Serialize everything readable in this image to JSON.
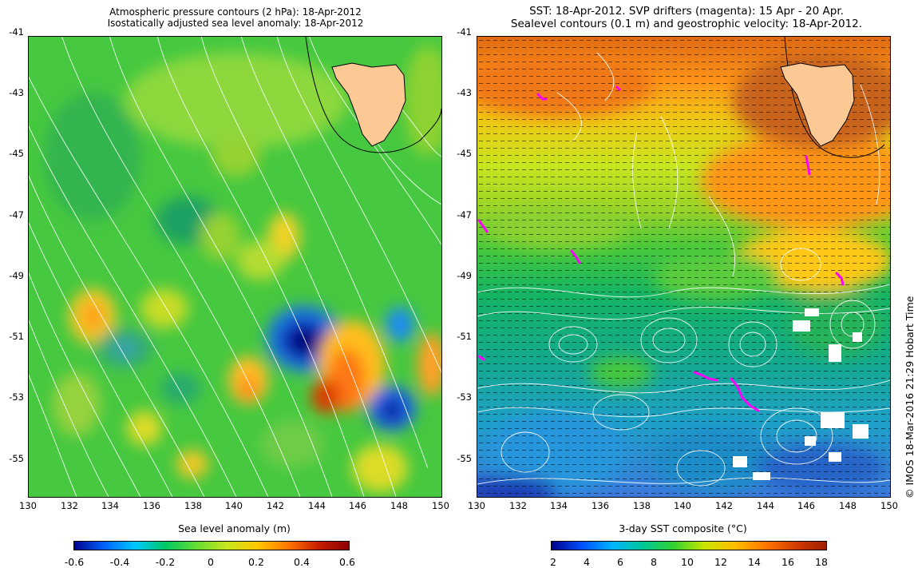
{
  "left_panel": {
    "title_line1": "Atmospheric pressure contours (2 hPa): 18-Apr-2012",
    "title_line2": "Isostatically adjusted sea level anomaly: 18-Apr-2012",
    "colorbar_label": "Sea level anomaly (m)",
    "colorbar_ticks": [
      "-0.6",
      "-0.4",
      "-0.2",
      "0",
      "0.2",
      "0.4",
      "0.6"
    ]
  },
  "right_panel": {
    "title_line1": "SST: 18-Apr-2012. SVP drifters (magenta): 15 Apr - 20 Apr.",
    "title_line2": "Sealevel contours (0.1 m) and geostrophic velocity: 18-Apr-2012.",
    "colorbar_label": "3-day SST composite (°C)",
    "colorbar_ticks": [
      "2",
      "4",
      "6",
      "8",
      "10",
      "12",
      "14",
      "16",
      "18"
    ]
  },
  "axes": {
    "lat_ticks": [
      "-41",
      "-43",
      "-45",
      "-47",
      "-49",
      "-51",
      "-53",
      "-55"
    ],
    "lon_ticks": [
      "130",
      "132",
      "134",
      "136",
      "138",
      "140",
      "142",
      "144",
      "146",
      "148",
      "150"
    ]
  },
  "credit": "© IMOS 18-Mar-2016 21:29 Hobart Time",
  "colors": {
    "land": "#fcc894",
    "drifter": "#ff00ff",
    "contour": "#ffffff",
    "sla_scale": [
      "#00008b",
      "#0064ff",
      "#00c8ff",
      "#00c864",
      "#64dc32",
      "#c8e61e",
      "#ffc800",
      "#ff7800",
      "#c81e00",
      "#8b0000"
    ],
    "sst_scale": [
      "#00008b",
      "#0050ff",
      "#00b4ff",
      "#00c896",
      "#32d232",
      "#c8e600",
      "#ffbe00",
      "#ff7800",
      "#d23c00",
      "#a01e00"
    ]
  }
}
